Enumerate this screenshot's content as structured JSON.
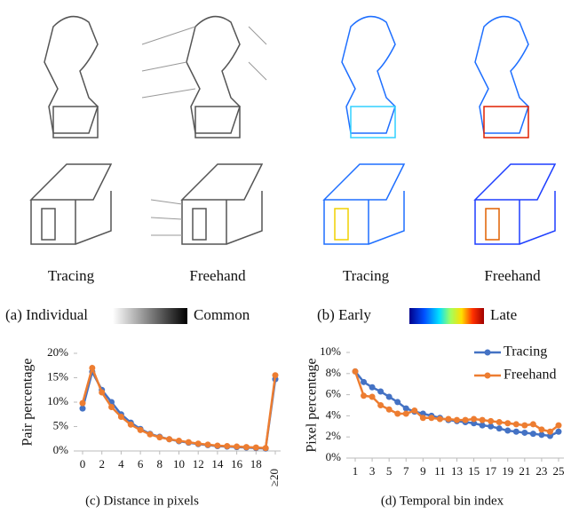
{
  "panels": [
    {
      "labels": [
        "Tracing",
        "Freehand"
      ],
      "caption": "(a) Individual",
      "legend_end": "Common"
    },
    {
      "labels": [
        "Tracing",
        "Freehand"
      ],
      "caption": "(b) Early",
      "legend_end": "Late"
    }
  ],
  "chart_data": [
    {
      "type": "line",
      "caption": "(c) Distance in pixels",
      "y_label": "Pair percentage",
      "x": [
        0,
        1,
        2,
        3,
        4,
        5,
        6,
        7,
        8,
        9,
        10,
        11,
        12,
        13,
        14,
        15,
        16,
        17,
        18,
        19,
        20
      ],
      "xlim": [
        0,
        20
      ],
      "xticks": [
        0,
        2,
        4,
        6,
        8,
        10,
        12,
        14,
        16,
        18,
        {
          "value": 20,
          "label": "≥20"
        }
      ],
      "ylim": [
        0,
        20
      ],
      "yticks": [
        {
          "value": 0,
          "label": "0%"
        },
        {
          "value": 5,
          "label": "5%"
        },
        {
          "value": 10,
          "label": "10%"
        },
        {
          "value": 15,
          "label": "15%"
        },
        {
          "value": 20,
          "label": "20%"
        }
      ],
      "legend": false,
      "series": [
        {
          "name": "Tracing",
          "color": "#4472c4",
          "values": [
            8.7,
            16.2,
            12.5,
            10.0,
            7.5,
            5.8,
            4.5,
            3.5,
            2.9,
            2.4,
            2.0,
            1.7,
            1.4,
            1.2,
            1.0,
            0.9,
            0.8,
            0.7,
            0.6,
            0.5,
            14.7
          ]
        },
        {
          "name": "Freehand",
          "color": "#ed7d31",
          "values": [
            9.8,
            17.0,
            12.0,
            9.0,
            7.0,
            5.4,
            4.3,
            3.4,
            2.8,
            2.4,
            2.1,
            1.8,
            1.5,
            1.3,
            1.1,
            1.0,
            0.9,
            0.8,
            0.7,
            0.6,
            15.5
          ]
        }
      ]
    },
    {
      "type": "line",
      "caption": "(d) Temporal bin index",
      "y_label": "Pixel percentage",
      "x": [
        1,
        2,
        3,
        4,
        5,
        6,
        7,
        8,
        9,
        10,
        11,
        12,
        13,
        14,
        15,
        16,
        17,
        18,
        19,
        20,
        21,
        22,
        23,
        24,
        25
      ],
      "xlim": [
        1,
        25
      ],
      "xticks": [
        1,
        3,
        5,
        7,
        9,
        11,
        13,
        15,
        17,
        19,
        21,
        23,
        25
      ],
      "ylim": [
        0,
        10
      ],
      "yticks": [
        {
          "value": 0,
          "label": "0%"
        },
        {
          "value": 2,
          "label": "2%"
        },
        {
          "value": 4,
          "label": "4%"
        },
        {
          "value": 6,
          "label": "6%"
        },
        {
          "value": 8,
          "label": "8%"
        },
        {
          "value": 10,
          "label": "10%"
        }
      ],
      "legend": "top-right",
      "series": [
        {
          "name": "Tracing",
          "color": "#4472c4",
          "values": [
            8.2,
            7.2,
            6.7,
            6.3,
            5.8,
            5.3,
            4.7,
            4.4,
            4.2,
            4.0,
            3.8,
            3.6,
            3.5,
            3.4,
            3.3,
            3.1,
            3.0,
            2.8,
            2.6,
            2.5,
            2.4,
            2.3,
            2.2,
            2.1,
            2.5
          ]
        },
        {
          "name": "Freehand",
          "color": "#ed7d31",
          "values": [
            8.2,
            5.9,
            5.8,
            5.0,
            4.6,
            4.2,
            4.2,
            4.5,
            3.8,
            3.8,
            3.7,
            3.7,
            3.6,
            3.6,
            3.7,
            3.6,
            3.5,
            3.4,
            3.3,
            3.2,
            3.1,
            3.2,
            2.7,
            2.5,
            3.1
          ]
        }
      ]
    }
  ]
}
